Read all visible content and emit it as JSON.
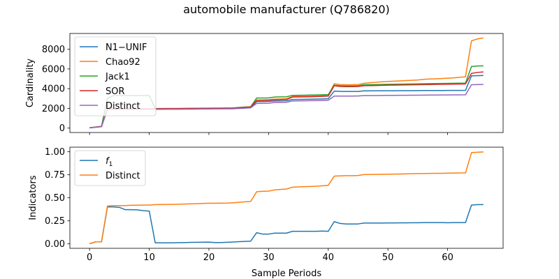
{
  "figure_title": "automobile manufacturer (Q786820)",
  "colors": {
    "blue": "#1f77b4",
    "orange": "#ff7f0e",
    "green": "#2ca02c",
    "red": "#d62728",
    "purple": "#9467bd"
  },
  "chart_data": [
    {
      "type": "line",
      "title": "",
      "xlabel": "",
      "ylabel": "Cardinality",
      "xlim": [
        -3.3,
        69.3
      ],
      "ylim": [
        -450,
        9600
      ],
      "xticks": [
        0,
        10,
        20,
        30,
        40,
        50,
        60
      ],
      "yticks": [
        0,
        2000,
        4000,
        6000,
        8000
      ],
      "ytick_labels": [
        "0",
        "2000",
        "4000",
        "6000",
        "8000"
      ],
      "show_x_tick_labels": false,
      "legend_location": "upper-left",
      "x": [
        0,
        1,
        2,
        3,
        4,
        5,
        6,
        7,
        8,
        9,
        10,
        11,
        12,
        13,
        14,
        15,
        16,
        17,
        18,
        19,
        20,
        21,
        22,
        23,
        24,
        25,
        26,
        27,
        28,
        29,
        30,
        31,
        32,
        33,
        34,
        35,
        36,
        37,
        38,
        39,
        40,
        41,
        42,
        43,
        44,
        45,
        46,
        47,
        48,
        49,
        50,
        51,
        52,
        53,
        54,
        55,
        56,
        57,
        58,
        59,
        60,
        61,
        62,
        63,
        64,
        65,
        66
      ],
      "series": [
        {
          "name": "N1−UNIF",
          "color": "#1f77b4",
          "values": [
            20,
            90,
            150,
            1950,
            1940,
            1940,
            1940,
            1940,
            1940,
            1940,
            1940,
            1940,
            1945,
            1950,
            1950,
            1955,
            1960,
            1965,
            1970,
            1975,
            1980,
            1985,
            1990,
            1995,
            2000,
            2040,
            2070,
            2100,
            2680,
            2690,
            2700,
            2750,
            2760,
            2770,
            2900,
            2910,
            2920,
            2930,
            2950,
            2960,
            2980,
            3750,
            3730,
            3720,
            3720,
            3720,
            3780,
            3780,
            3785,
            3785,
            3790,
            3790,
            3795,
            3800,
            3800,
            3805,
            3810,
            3810,
            3815,
            3815,
            3820,
            3820,
            3825,
            3830,
            5300,
            5320,
            5340
          ]
        },
        {
          "name": "Chao92",
          "color": "#ff7f0e",
          "values": [
            30,
            100,
            160,
            1950,
            1950,
            1950,
            1950,
            1950,
            1950,
            1950,
            1950,
            1950,
            1955,
            1960,
            1960,
            1965,
            1970,
            1975,
            1980,
            1985,
            1990,
            1995,
            2000,
            2005,
            2010,
            2060,
            2100,
            2140,
            2850,
            2860,
            2880,
            2940,
            2960,
            2980,
            3200,
            3220,
            3230,
            3240,
            3260,
            3280,
            3300,
            4500,
            4420,
            4400,
            4400,
            4420,
            4550,
            4600,
            4650,
            4700,
            4730,
            4760,
            4790,
            4820,
            4850,
            4880,
            4950,
            4980,
            5000,
            5030,
            5060,
            5100,
            5150,
            5200,
            8850,
            9050,
            9150
          ]
        },
        {
          "name": "Jack1",
          "color": "#2ca02c",
          "values": [
            40,
            110,
            180,
            3050,
            3300,
            3300,
            3300,
            3300,
            3300,
            3300,
            3300,
            1980,
            1985,
            1990,
            1990,
            1995,
            2000,
            2005,
            2010,
            2015,
            2020,
            2025,
            2030,
            2035,
            2040,
            2090,
            2130,
            2170,
            3050,
            3050,
            3060,
            3150,
            3170,
            3180,
            3320,
            3330,
            3340,
            3350,
            3360,
            3380,
            3400,
            4350,
            4300,
            4280,
            4280,
            4300,
            4400,
            4410,
            4420,
            4430,
            4440,
            4450,
            4460,
            4470,
            4480,
            4490,
            4500,
            4510,
            4520,
            4530,
            4540,
            4550,
            4560,
            4570,
            6250,
            6300,
            6320
          ]
        },
        {
          "name": "SOR",
          "color": "#d62728",
          "values": [
            30,
            100,
            160,
            1960,
            1960,
            1960,
            1960,
            1960,
            1960,
            1960,
            1960,
            1960,
            1965,
            1970,
            1970,
            1975,
            1980,
            1985,
            1990,
            1995,
            2000,
            2005,
            2010,
            2015,
            2020,
            2070,
            2100,
            2130,
            2800,
            2810,
            2820,
            2880,
            2890,
            2900,
            3150,
            3160,
            3170,
            3180,
            3200,
            3220,
            3250,
            4300,
            4220,
            4200,
            4200,
            4220,
            4300,
            4310,
            4320,
            4340,
            4350,
            4360,
            4370,
            4380,
            4390,
            4400,
            4410,
            4420,
            4430,
            4440,
            4450,
            4460,
            4470,
            4480,
            5550,
            5650,
            5700
          ]
        },
        {
          "name": "Distinct",
          "color": "#9467bd",
          "values": [
            20,
            80,
            140,
            1900,
            1900,
            1900,
            1900,
            1900,
            1900,
            1900,
            1900,
            1900,
            1905,
            1910,
            1910,
            1915,
            1920,
            1925,
            1930,
            1935,
            1940,
            1945,
            1950,
            1955,
            1960,
            1990,
            2020,
            2050,
            2500,
            2510,
            2520,
            2600,
            2610,
            2620,
            2750,
            2760,
            2770,
            2780,
            2790,
            2800,
            2820,
            3250,
            3250,
            3250,
            3250,
            3260,
            3300,
            3300,
            3305,
            3310,
            3315,
            3320,
            3325,
            3330,
            3335,
            3340,
            3345,
            3350,
            3355,
            3360,
            3365,
            3370,
            3375,
            3380,
            4400,
            4420,
            4430
          ]
        }
      ]
    },
    {
      "type": "line",
      "title": "",
      "xlabel": "Sample Periods",
      "ylabel": "Indicators",
      "xlim": [
        -3.3,
        69.3
      ],
      "ylim": [
        -0.05,
        1.05
      ],
      "xticks": [
        0,
        10,
        20,
        30,
        40,
        50,
        60
      ],
      "xtick_labels": [
        "0",
        "10",
        "20",
        "30",
        "40",
        "50",
        "60"
      ],
      "yticks": [
        0,
        0.25,
        0.5,
        0.75,
        1.0
      ],
      "ytick_labels": [
        "0.00",
        "0.25",
        "0.50",
        "0.75",
        "1.00"
      ],
      "show_x_tick_labels": true,
      "legend_location": "upper-left",
      "x": [
        0,
        1,
        2,
        3,
        4,
        5,
        6,
        7,
        8,
        9,
        10,
        11,
        12,
        13,
        14,
        15,
        16,
        17,
        18,
        19,
        20,
        21,
        22,
        23,
        24,
        25,
        26,
        27,
        28,
        29,
        30,
        31,
        32,
        33,
        34,
        35,
        36,
        37,
        38,
        39,
        40,
        41,
        42,
        43,
        44,
        45,
        46,
        47,
        48,
        49,
        50,
        51,
        52,
        53,
        54,
        55,
        56,
        57,
        58,
        59,
        60,
        61,
        62,
        63,
        64,
        65,
        66
      ],
      "series": [
        {
          "name": "f",
          "name_subscript": "1",
          "color": "#1f77b4",
          "values": [
            0.0,
            0.02,
            0.02,
            0.4,
            0.4,
            0.395,
            0.37,
            0.37,
            0.368,
            0.36,
            0.355,
            0.01,
            0.01,
            0.01,
            0.01,
            0.012,
            0.013,
            0.014,
            0.015,
            0.016,
            0.017,
            0.013,
            0.013,
            0.015,
            0.018,
            0.022,
            0.025,
            0.028,
            0.12,
            0.105,
            0.105,
            0.115,
            0.115,
            0.115,
            0.135,
            0.135,
            0.135,
            0.135,
            0.135,
            0.138,
            0.135,
            0.24,
            0.22,
            0.215,
            0.215,
            0.215,
            0.225,
            0.225,
            0.225,
            0.225,
            0.226,
            0.226,
            0.227,
            0.227,
            0.228,
            0.228,
            0.23,
            0.23,
            0.23,
            0.23,
            0.228,
            0.23,
            0.23,
            0.23,
            0.42,
            0.425,
            0.425
          ]
        },
        {
          "name": "Distinct",
          "color": "#ff7f0e",
          "values": [
            0.0,
            0.02,
            0.02,
            0.41,
            0.415,
            0.415,
            0.415,
            0.418,
            0.418,
            0.42,
            0.42,
            0.425,
            0.426,
            0.427,
            0.428,
            0.43,
            0.432,
            0.434,
            0.436,
            0.438,
            0.44,
            0.44,
            0.441,
            0.442,
            0.445,
            0.45,
            0.455,
            0.46,
            0.565,
            0.57,
            0.572,
            0.585,
            0.59,
            0.595,
            0.615,
            0.618,
            0.62,
            0.622,
            0.625,
            0.63,
            0.635,
            0.735,
            0.738,
            0.74,
            0.74,
            0.742,
            0.752,
            0.753,
            0.754,
            0.755,
            0.756,
            0.757,
            0.758,
            0.76,
            0.762,
            0.763,
            0.764,
            0.765,
            0.766,
            0.766,
            0.767,
            0.768,
            0.769,
            0.77,
            0.99,
            0.995,
            0.998
          ]
        }
      ]
    }
  ]
}
